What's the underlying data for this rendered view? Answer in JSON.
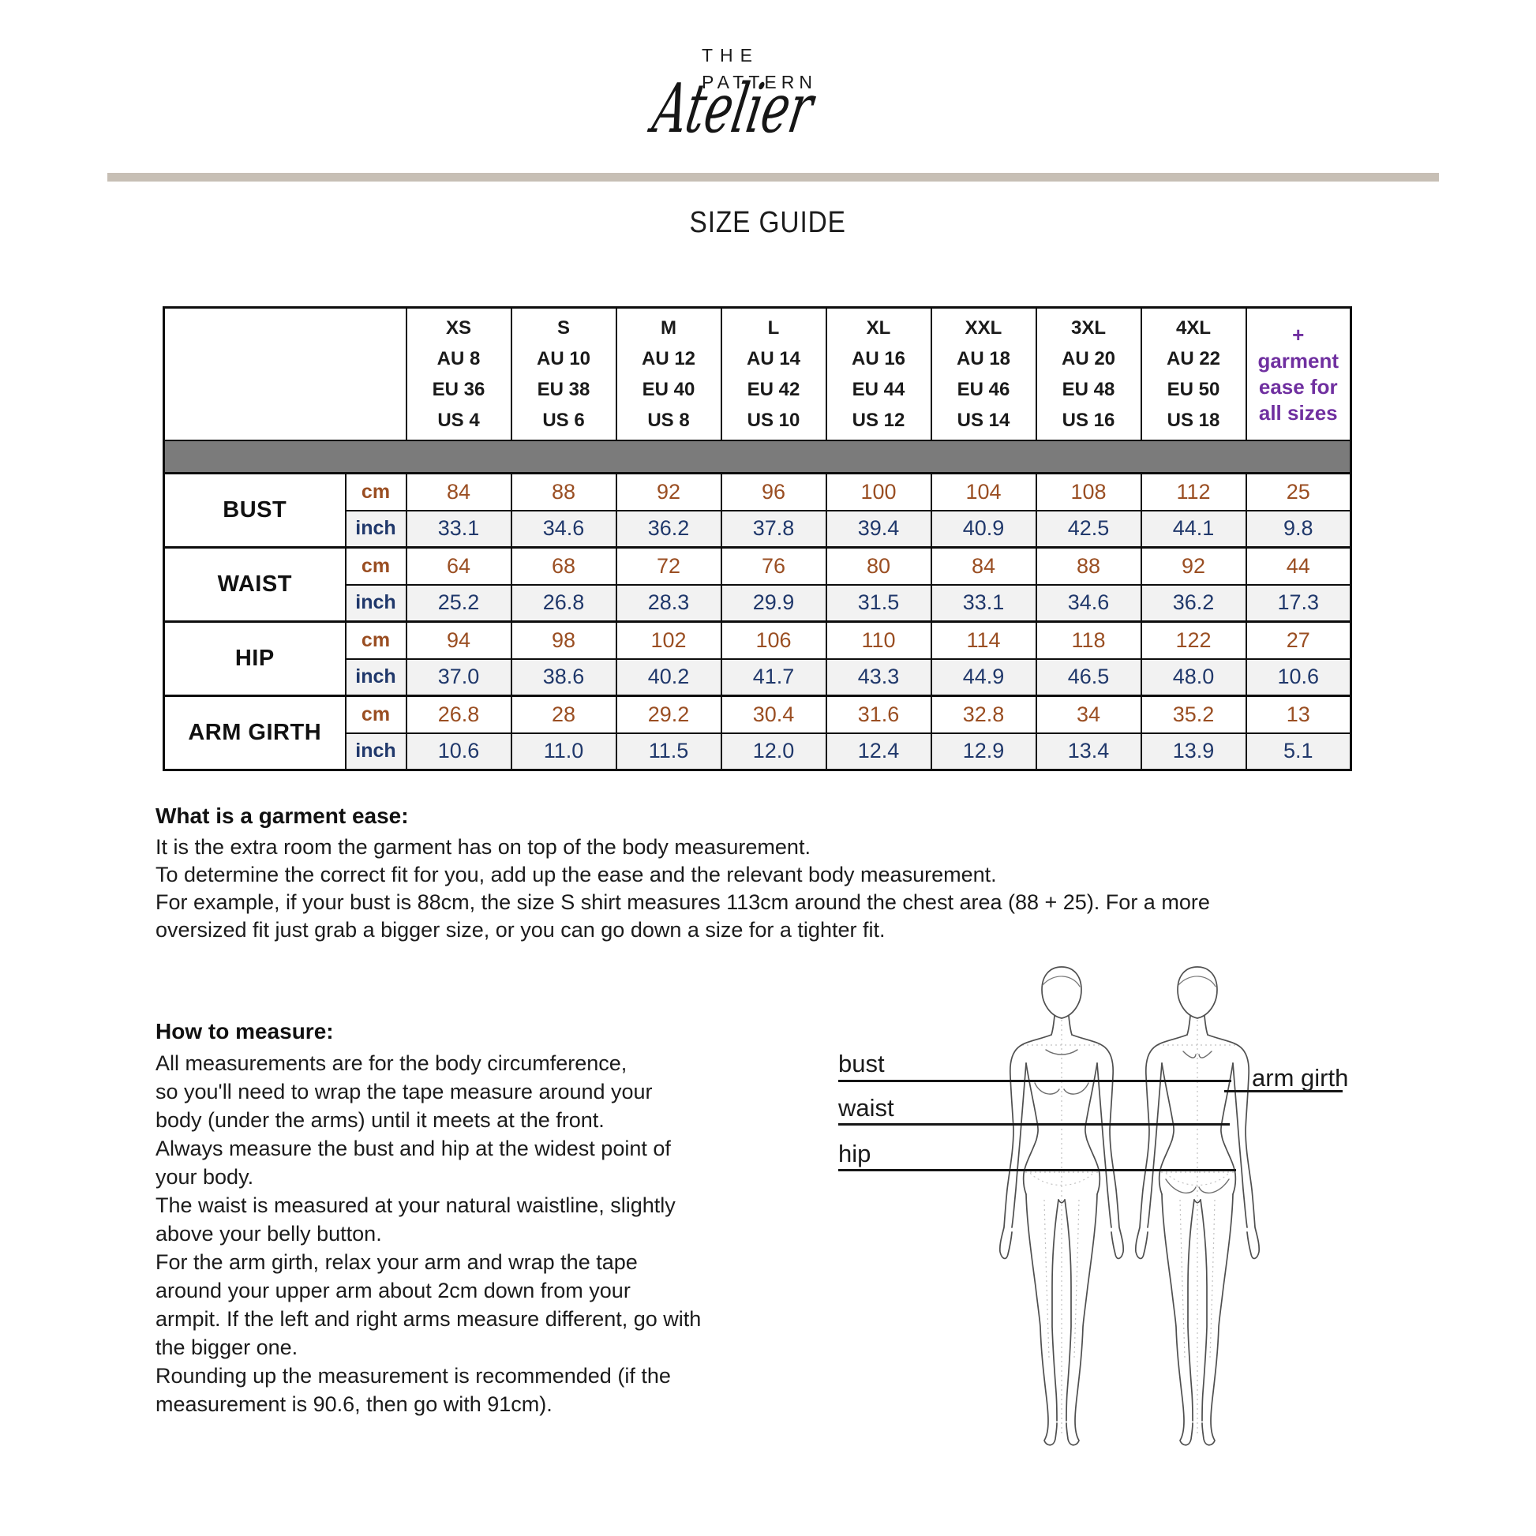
{
  "logo": {
    "line1": "THE",
    "line2": "PATTERN",
    "script": "Atelier"
  },
  "title": "SIZE GUIDE",
  "size_table": {
    "columns": [
      {
        "size": "XS",
        "au": "AU 8",
        "eu": "EU 36",
        "us": "US 4"
      },
      {
        "size": "S",
        "au": "AU 10",
        "eu": "EU 38",
        "us": "US 6"
      },
      {
        "size": "M",
        "au": "AU 12",
        "eu": "EU 40",
        "us": "US 8"
      },
      {
        "size": "L",
        "au": "AU 14",
        "eu": "EU 42",
        "us": "US 10"
      },
      {
        "size": "XL",
        "au": "AU 16",
        "eu": "EU 44",
        "us": "US 12"
      },
      {
        "size": "XXL",
        "au": "AU 18",
        "eu": "EU 46",
        "us": "US 14"
      },
      {
        "size": "3XL",
        "au": "AU 20",
        "eu": "EU 48",
        "us": "US 16"
      },
      {
        "size": "4XL",
        "au": "AU 22",
        "eu": "EU 50",
        "us": "US 18"
      }
    ],
    "ease_header_lines": [
      "+",
      "garment",
      "ease for",
      "all sizes"
    ],
    "unit_cm": "cm",
    "unit_inch": "inch",
    "measurements": [
      {
        "label": "BUST",
        "cm": [
          "84",
          "88",
          "92",
          "96",
          "100",
          "104",
          "108",
          "112",
          "25"
        ],
        "inch": [
          "33.1",
          "34.6",
          "36.2",
          "37.8",
          "39.4",
          "40.9",
          "42.5",
          "44.1",
          "9.8"
        ]
      },
      {
        "label": "WAIST",
        "cm": [
          "64",
          "68",
          "72",
          "76",
          "80",
          "84",
          "88",
          "92",
          "44"
        ],
        "inch": [
          "25.2",
          "26.8",
          "28.3",
          "29.9",
          "31.5",
          "33.1",
          "34.6",
          "36.2",
          "17.3"
        ]
      },
      {
        "label": "HIP",
        "cm": [
          "94",
          "98",
          "102",
          "106",
          "110",
          "114",
          "118",
          "122",
          "27"
        ],
        "inch": [
          "37.0",
          "38.6",
          "40.2",
          "41.7",
          "43.3",
          "44.9",
          "46.5",
          "48.0",
          "10.6"
        ]
      },
      {
        "label": "ARM GIRTH",
        "cm": [
          "26.8",
          "28",
          "29.2",
          "30.4",
          "31.6",
          "32.8",
          "34",
          "35.2",
          "13"
        ],
        "inch": [
          "10.6",
          "11.0",
          "11.5",
          "12.0",
          "12.4",
          "12.9",
          "13.4",
          "13.9",
          "5.1"
        ]
      }
    ]
  },
  "ease_section": {
    "heading": "What is a garment ease:",
    "lines": [
      "It is the extra room the garment has on top of the body measurement.",
      "To determine the correct fit for you, add up the ease and the relevant body measurement.",
      "For example, if your bust is 88cm, the size S shirt measures 113cm around the chest area (88 + 25). For a more",
      "oversized fit just grab a bigger size, or you can go down a size for a tighter fit."
    ]
  },
  "measure_section": {
    "heading": "How to measure:",
    "lines": [
      "All measurements are for the body circumference,",
      "so you'll need to wrap the tape measure around your",
      "body (under the arms) until it meets at the front.",
      "Always measure the bust and hip at the widest point of",
      "your body.",
      "The waist is measured at your natural waistline, slightly",
      "above your belly button.",
      "For the arm girth, relax your arm and wrap the tape",
      "around your upper arm about 2cm down from your",
      "armpit. If the left and right arms measure different, go with",
      "the bigger one.",
      "Rounding up the measurement is recommended (if the",
      "measurement is 90.6, then go with 91cm)."
    ]
  },
  "figure_labels": {
    "bust": "bust",
    "waist": "waist",
    "hip": "hip",
    "arm_girth": "arm girth"
  },
  "colors": {
    "accent_purple": "#7030a0",
    "cm_brown": "#9a4e22",
    "inch_navy": "#20386b",
    "bar_gray": "#7b7b7b",
    "divider_taupe": "#c7bfb5"
  }
}
